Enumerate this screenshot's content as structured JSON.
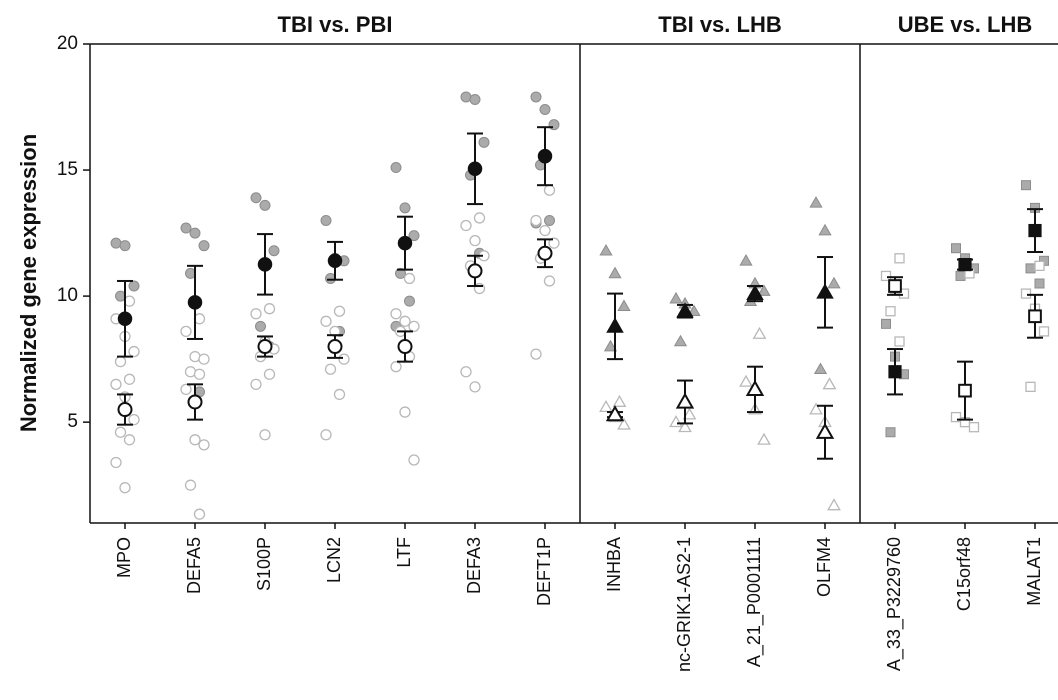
{
  "chart_data": {
    "type": "strip",
    "ylabel": "Normalized gene expression",
    "ylim": [
      1,
      20
    ],
    "yticks": [
      5,
      10,
      15,
      20
    ],
    "colors": {
      "mean": "#111111",
      "filled_points": "#ababab",
      "open_points": "#b8b8b8"
    },
    "panels": [
      {
        "title": "TBI vs. PBI",
        "marker": "circle",
        "genes": [
          {
            "label": "MPO",
            "filled": {
              "mean": 9.1,
              "err": 1.5,
              "points": [
                12.1,
                12.0,
                10.4,
                10.0
              ]
            },
            "open": {
              "mean": 5.5,
              "err": 0.6,
              "points": [
                9.8,
                9.1,
                8.4,
                7.8,
                7.4,
                6.7,
                6.5,
                6.0,
                5.1,
                4.6,
                4.3,
                3.4,
                2.4
              ]
            }
          },
          {
            "label": "DEFA5",
            "filled": {
              "mean": 9.75,
              "err": 1.45,
              "points": [
                12.7,
                12.5,
                12.0,
                10.9,
                6.2
              ]
            },
            "open": {
              "mean": 5.8,
              "err": 0.7,
              "points": [
                9.1,
                8.6,
                7.6,
                7.5,
                7.0,
                6.9,
                6.3,
                4.3,
                4.1,
                2.5,
                1.35
              ]
            }
          },
          {
            "label": "S100P",
            "filled": {
              "mean": 11.26,
              "err": 1.2,
              "points": [
                13.9,
                13.6,
                11.8,
                8.8,
                8.0
              ]
            },
            "open": {
              "mean": 8.0,
              "err": 0.4,
              "points": [
                9.5,
                9.3,
                8.2,
                7.9,
                7.6,
                6.9,
                6.5,
                4.5
              ]
            }
          },
          {
            "label": "LCN2",
            "filled": {
              "mean": 11.4,
              "err": 0.75,
              "points": [
                13.0,
                11.5,
                11.4,
                10.7,
                8.6
              ]
            },
            "open": {
              "mean": 8.0,
              "err": 0.45,
              "points": [
                9.4,
                9.0,
                8.6,
                7.5,
                7.1,
                6.1,
                4.5
              ]
            }
          },
          {
            "label": "LTF",
            "filled": {
              "mean": 12.1,
              "err": 1.05,
              "points": [
                15.1,
                13.5,
                12.4,
                10.9,
                9.8,
                8.8
              ]
            },
            "open": {
              "mean": 8.0,
              "err": 0.6,
              "points": [
                10.7,
                9.3,
                9.0,
                8.8,
                8.6,
                7.6,
                7.2,
                5.4,
                3.5
              ]
            }
          },
          {
            "label": "DEFA3",
            "filled": {
              "mean": 15.05,
              "err": 1.4,
              "points": [
                17.9,
                17.8,
                16.1,
                14.8,
                11.7
              ]
            },
            "open": {
              "mean": 11.0,
              "err": 0.6,
              "points": [
                13.1,
                12.8,
                12.2,
                11.6,
                11.2,
                10.3,
                7.0,
                6.4
              ]
            }
          },
          {
            "label": "DEFT1P",
            "filled": {
              "mean": 15.55,
              "err": 1.15,
              "points": [
                17.9,
                17.4,
                16.8,
                15.2,
                13.0,
                12.9
              ]
            },
            "open": {
              "mean": 11.7,
              "err": 0.55,
              "points": [
                14.2,
                13.0,
                12.6,
                12.1,
                11.5,
                10.6,
                7.7
              ]
            }
          }
        ]
      },
      {
        "title": "TBI vs. LHB",
        "marker": "triangle",
        "genes": [
          {
            "label": "INHBA",
            "filled": {
              "mean": 8.8,
              "err": 1.3,
              "points": [
                11.8,
                10.9,
                9.6,
                8.0
              ]
            },
            "open": {
              "mean": 5.3,
              "err": 0.1,
              "points": [
                5.8,
                5.6,
                5.2,
                4.9
              ]
            }
          },
          {
            "label": "nc-GRIK1-AS2-1",
            "filled": {
              "mean": 9.4,
              "err": 0.25,
              "points": [
                9.9,
                9.7,
                9.4,
                8.2
              ]
            },
            "open": {
              "mean": 5.8,
              "err": 0.85,
              "points": [
                5.3,
                5.0,
                4.8
              ]
            }
          },
          {
            "label": "A_21_P0001111",
            "filled": {
              "mean": 10.1,
              "err": 0.3,
              "points": [
                11.4,
                10.5,
                10.2,
                9.8
              ]
            },
            "open": {
              "mean": 6.3,
              "err": 0.9,
              "points": [
                8.5,
                6.6,
                5.5,
                4.3
              ]
            }
          },
          {
            "label": "OLFM4",
            "filled": {
              "mean": 10.15,
              "err": 1.4,
              "points": [
                13.7,
                12.6,
                10.5,
                7.1,
                6.5
              ]
            },
            "open": {
              "mean": 4.6,
              "err": 1.05,
              "points": [
                6.5,
                5.5,
                5.0,
                1.7
              ]
            }
          }
        ]
      },
      {
        "title": "UBE vs. LHB",
        "marker": "square",
        "genes": [
          {
            "label": "A_33_P3229760",
            "filled": {
              "mean": 7.0,
              "err": 0.9,
              "points": [
                8.9,
                7.6,
                6.9,
                4.6
              ]
            },
            "open": {
              "mean": 10.4,
              "err": 0.35,
              "points": [
                11.5,
                10.8,
                10.3,
                10.1,
                9.4,
                8.2
              ]
            }
          },
          {
            "label": "C15orf48",
            "filled": {
              "mean": 11.25,
              "err": 0.2,
              "points": [
                11.9,
                11.5,
                11.1,
                10.8
              ]
            },
            "open": {
              "mean": 6.25,
              "err": 1.15,
              "points": [
                10.9,
                5.2,
                5.0,
                4.8
              ]
            }
          },
          {
            "label": "MALAT1",
            "filled": {
              "mean": 12.6,
              "err": 0.85,
              "points": [
                14.4,
                13.5,
                11.4,
                11.1,
                10.5
              ]
            },
            "open": {
              "mean": 9.2,
              "err": 0.85,
              "points": [
                11.2,
                10.1,
                9.5,
                8.6,
                6.4
              ]
            }
          }
        ]
      }
    ]
  }
}
